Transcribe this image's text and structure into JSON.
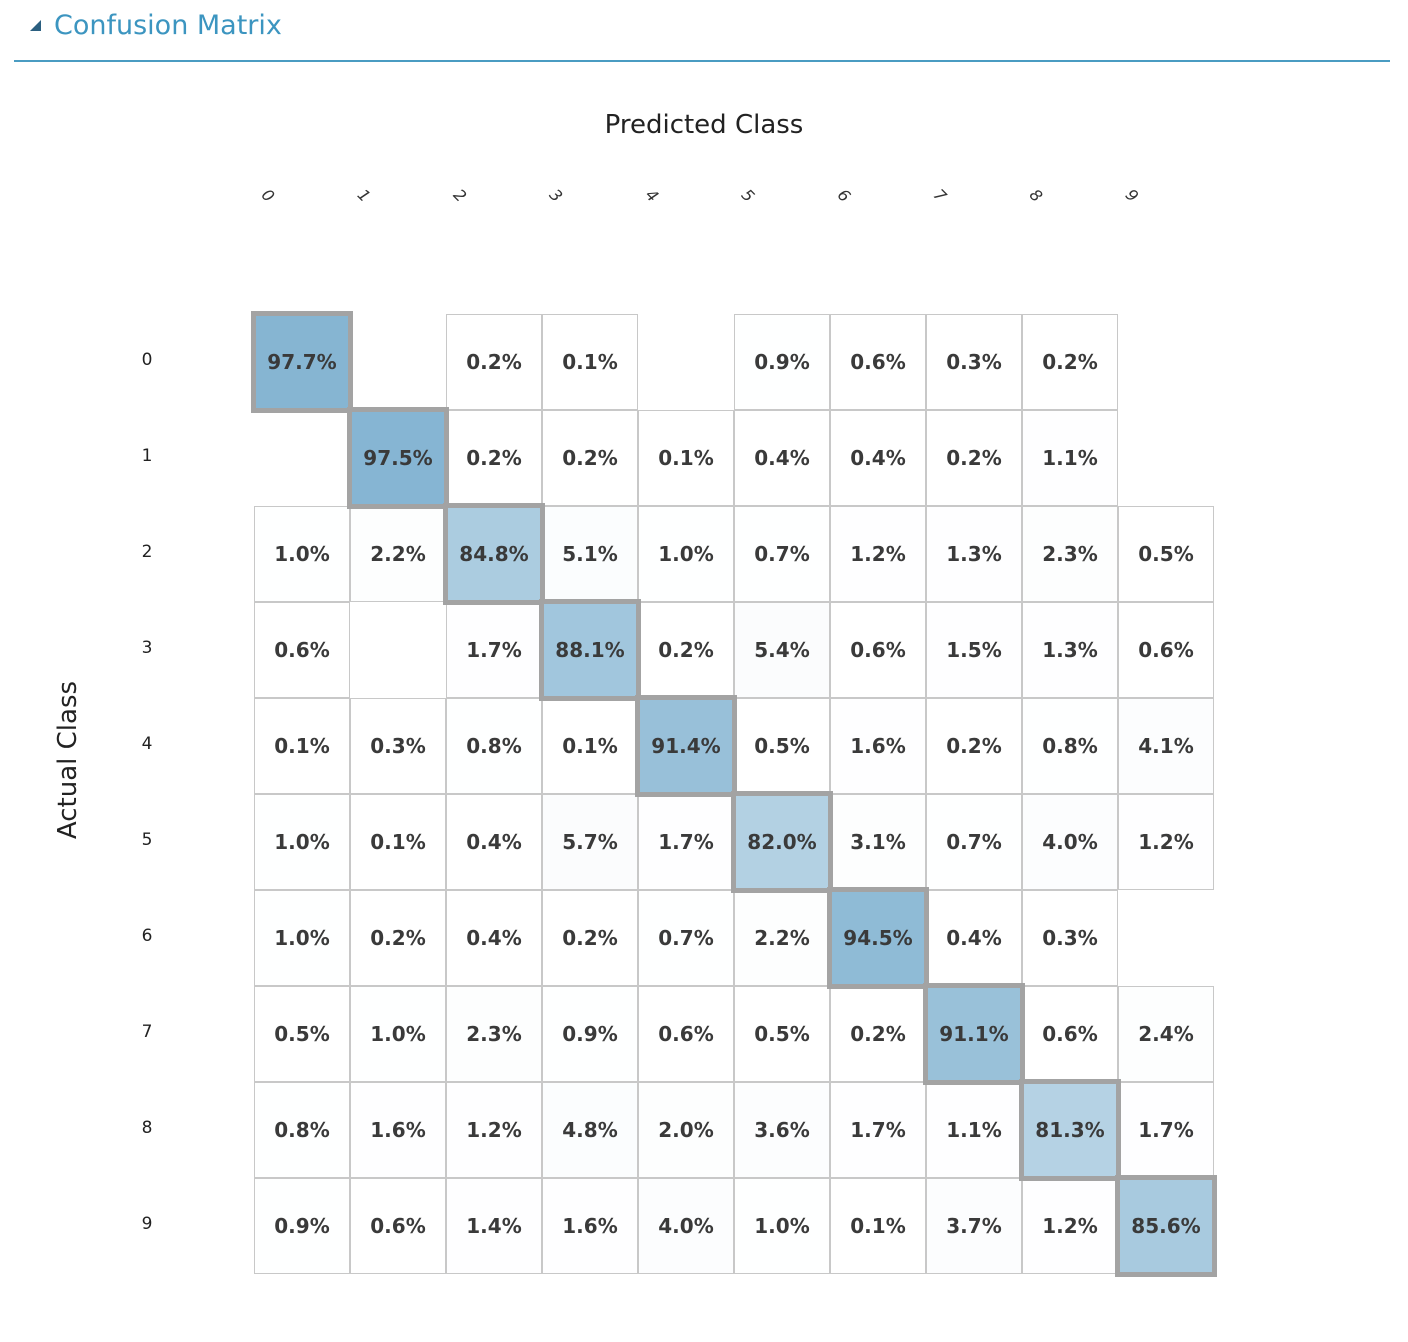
{
  "section": {
    "title": "Confusion Matrix",
    "icon": "collapse-triangle-icon"
  },
  "chart_data": {
    "type": "heatmap",
    "xlabel": "Predicted Class",
    "ylabel": "Actual Class",
    "x_categories": [
      "0",
      "1",
      "2",
      "3",
      "4",
      "5",
      "6",
      "7",
      "8",
      "9"
    ],
    "y_categories": [
      "0",
      "1",
      "2",
      "3",
      "4",
      "5",
      "6",
      "7",
      "8",
      "9"
    ],
    "values": [
      [
        "97.7%",
        "",
        "0.2%",
        "0.1%",
        "",
        "0.9%",
        "0.6%",
        "0.3%",
        "0.2%",
        ""
      ],
      [
        "",
        "97.5%",
        "0.2%",
        "0.2%",
        "0.1%",
        "0.4%",
        "0.4%",
        "0.2%",
        "1.1%",
        ""
      ],
      [
        "1.0%",
        "2.2%",
        "84.8%",
        "5.1%",
        "1.0%",
        "0.7%",
        "1.2%",
        "1.3%",
        "2.3%",
        "0.5%"
      ],
      [
        "0.6%",
        "",
        "1.7%",
        "88.1%",
        "0.2%",
        "5.4%",
        "0.6%",
        "1.5%",
        "1.3%",
        "0.6%"
      ],
      [
        "0.1%",
        "0.3%",
        "0.8%",
        "0.1%",
        "91.4%",
        "0.5%",
        "1.6%",
        "0.2%",
        "0.8%",
        "4.1%"
      ],
      [
        "1.0%",
        "0.1%",
        "0.4%",
        "5.7%",
        "1.7%",
        "82.0%",
        "3.1%",
        "0.7%",
        "4.0%",
        "1.2%"
      ],
      [
        "1.0%",
        "0.2%",
        "0.4%",
        "0.2%",
        "0.7%",
        "2.2%",
        "94.5%",
        "0.4%",
        "0.3%",
        ""
      ],
      [
        "0.5%",
        "1.0%",
        "2.3%",
        "0.9%",
        "0.6%",
        "0.5%",
        "0.2%",
        "91.1%",
        "0.6%",
        "2.4%"
      ],
      [
        "0.8%",
        "1.6%",
        "1.2%",
        "4.8%",
        "2.0%",
        "3.6%",
        "1.7%",
        "1.1%",
        "81.3%",
        "1.7%"
      ],
      [
        "0.9%",
        "0.6%",
        "1.4%",
        "1.6%",
        "4.0%",
        "1.0%",
        "0.1%",
        "3.7%",
        "1.2%",
        "85.6%"
      ]
    ],
    "colors": {
      "high": "#7fb1d0",
      "low": "#ffffff",
      "diagonal_border": "#a3a3a3",
      "cell_border": "#c8c8c8",
      "title": "#3c95c0",
      "header_rule": "#4a9cc2"
    }
  }
}
